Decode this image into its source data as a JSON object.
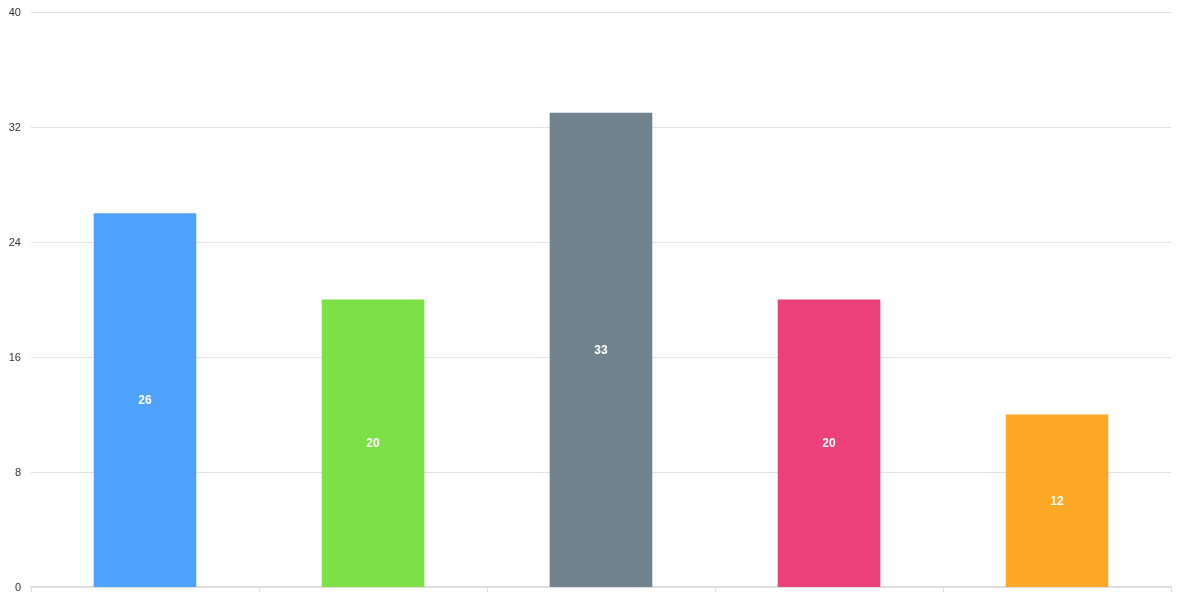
{
  "chart_data": {
    "type": "bar",
    "categories": [
      null,
      null,
      null,
      null,
      null
    ],
    "values": [
      26,
      20,
      33,
      20,
      12
    ],
    "colors": [
      "#4ea2fd",
      "#7ce147",
      "#6e838c",
      "#eb407a",
      "#ffa726"
    ],
    "ylim": [
      0,
      40
    ],
    "yticks": [
      0,
      8,
      16,
      24,
      32,
      40
    ],
    "grid": "y",
    "data_labels": true,
    "tick_labels": "y"
  }
}
